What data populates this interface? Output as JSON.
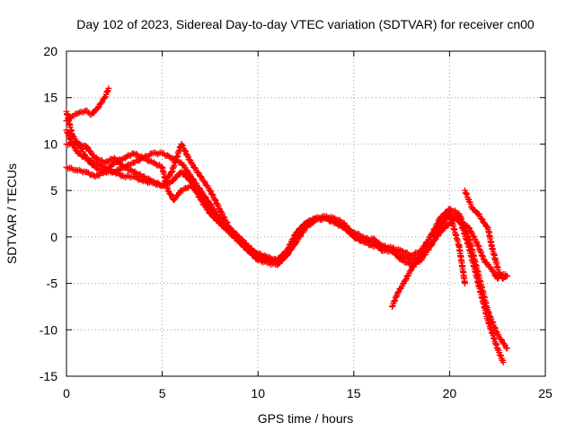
{
  "chart_data": {
    "type": "scatter",
    "title": "Day 102 of 2023, Sidereal Day-to-day VTEC variation (SDTVAR) for receiver cn00",
    "xlabel": "GPS time / hours",
    "ylabel": "SDTVAR / TECUs",
    "xlim": [
      0,
      25
    ],
    "ylim": [
      -15,
      20
    ],
    "xticks": [
      0,
      5,
      10,
      15,
      20,
      25
    ],
    "yticks": [
      -15,
      -10,
      -5,
      0,
      5,
      10,
      15,
      20
    ],
    "grid": true,
    "marker": "+",
    "series": [
      {
        "name": "track-a",
        "color": "#ff0000",
        "x": [
          0.0,
          0.3,
          0.6,
          1.0,
          1.3,
          1.6,
          2.0,
          2.2
        ],
        "y": [
          12.5,
          13.0,
          13.3,
          13.6,
          13.2,
          13.8,
          15.0,
          16.0
        ]
      },
      {
        "name": "track-b",
        "color": "#ff0000",
        "x": [
          0.0,
          0.3,
          0.6,
          0.8,
          1.0,
          1.5,
          2.0,
          2.5,
          3.0,
          3.5,
          4.0,
          4.5,
          5.0,
          5.5,
          6.0,
          6.5,
          7.0,
          7.5,
          8.0,
          8.5,
          9.0,
          9.5,
          10.0,
          10.5,
          11.0,
          11.5,
          12.0,
          12.5,
          13.0,
          13.5,
          14.0,
          14.5,
          15.0,
          15.5,
          16.0,
          16.5,
          17.0,
          17.5,
          18.0,
          18.5,
          19.0,
          19.5,
          20.0,
          20.5,
          21.0,
          21.5,
          22.0,
          22.5,
          23.0
        ],
        "y": [
          13.5,
          11.0,
          10.0,
          9.5,
          8.5,
          7.5,
          7.0,
          7.0,
          7.5,
          7.0,
          6.5,
          6.0,
          5.5,
          7.0,
          10.0,
          8.0,
          6.5,
          5.0,
          3.0,
          1.0,
          -0.5,
          -1.5,
          -2.5,
          -2.8,
          -3.0,
          -2.0,
          0.0,
          1.5,
          2.0,
          2.2,
          2.0,
          1.5,
          0.0,
          -0.5,
          -0.2,
          -1.0,
          -1.5,
          -2.0,
          -2.5,
          -2.0,
          0.0,
          2.0,
          3.0,
          2.5,
          0.0,
          -4.0,
          -8.0,
          -10.5,
          -12.0
        ]
      },
      {
        "name": "track-c",
        "color": "#ff0000",
        "x": [
          0.0,
          0.5,
          1.0,
          1.5,
          2.0,
          2.5,
          3.0,
          3.5,
          4.0,
          4.5,
          5.0,
          5.5,
          6.0,
          6.5,
          7.0,
          7.5,
          8.0,
          8.5,
          9.0,
          9.5,
          10.0,
          10.5,
          11.0,
          11.5,
          12.0,
          12.5,
          13.0,
          13.5,
          14.0,
          14.5,
          15.0,
          15.5,
          16.0,
          16.5,
          17.0,
          17.5,
          18.0,
          18.5,
          19.0,
          19.5,
          20.0,
          20.5,
          21.0,
          21.5,
          22.0,
          22.5,
          22.8
        ],
        "y": [
          10.0,
          10.0,
          9.8,
          8.5,
          8.0,
          8.5,
          7.5,
          8.0,
          8.5,
          9.0,
          9.0,
          8.5,
          8.0,
          6.5,
          5.0,
          3.5,
          2.0,
          1.0,
          0.0,
          -1.0,
          -2.0,
          -2.3,
          -2.5,
          -1.5,
          0.5,
          1.5,
          2.0,
          2.0,
          1.5,
          1.0,
          0.5,
          0.0,
          -0.5,
          -1.5,
          -1.5,
          -2.5,
          -3.0,
          -2.5,
          -1.0,
          1.0,
          2.5,
          2.0,
          -1.0,
          -5.0,
          -9.0,
          -12.0,
          -13.5
        ]
      },
      {
        "name": "track-d",
        "color": "#ff0000",
        "x": [
          0.0,
          0.5,
          1.0,
          1.5,
          2.0,
          2.5,
          3.0,
          3.5,
          4.0,
          4.5,
          5.0,
          5.3,
          5.6,
          6.0,
          6.5,
          7.0,
          7.5,
          8.0,
          8.5,
          9.0,
          9.5,
          10.0,
          10.5,
          11.0,
          11.5,
          12.0,
          12.5,
          13.0,
          13.5,
          14.0,
          14.5,
          15.0,
          15.5,
          16.0,
          16.5,
          17.0,
          17.5,
          18.0,
          18.5,
          19.0,
          19.5,
          20.0,
          20.5,
          20.8
        ],
        "y": [
          7.5,
          7.2,
          7.0,
          6.5,
          7.0,
          8.0,
          8.5,
          9.0,
          8.5,
          8.0,
          7.5,
          5.0,
          4.0,
          5.0,
          5.5,
          4.5,
          3.0,
          1.5,
          0.5,
          -0.5,
          -1.5,
          -2.0,
          -2.5,
          -2.7,
          -2.0,
          -0.5,
          1.0,
          1.8,
          2.0,
          1.8,
          1.0,
          0.0,
          -0.5,
          -1.0,
          -1.0,
          -1.2,
          -1.5,
          -2.0,
          -1.5,
          0.0,
          1.5,
          2.5,
          -1.0,
          -5.0
        ]
      },
      {
        "name": "track-e",
        "color": "#ff0000",
        "x": [
          0.0,
          0.3,
          0.6,
          1.0,
          1.5,
          2.0,
          2.5,
          3.0,
          3.5,
          4.0,
          4.5,
          5.0,
          5.5,
          6.0,
          6.5,
          7.0,
          7.5,
          8.0,
          8.5,
          9.0,
          9.5,
          10.0,
          10.5,
          11.0,
          11.5,
          12.0
        ],
        "y": [
          11.5,
          10.0,
          9.0,
          8.5,
          8.0,
          7.5,
          7.0,
          6.5,
          6.5,
          6.0,
          5.8,
          5.5,
          6.0,
          7.0,
          6.0,
          4.0,
          2.5,
          1.5,
          0.5,
          -0.5,
          -1.5,
          -1.8,
          -2.2,
          -2.5,
          -1.8,
          -0.5
        ]
      },
      {
        "name": "track-f",
        "color": "#ff0000",
        "x": [
          17.0,
          17.3,
          17.6,
          18.0,
          18.5,
          19.0,
          19.5,
          20.0,
          20.3,
          20.6,
          21.0,
          21.4,
          21.8,
          22.2,
          22.5,
          22.8,
          23.0
        ],
        "y": [
          -7.5,
          -6.0,
          -5.0,
          -3.5,
          -2.0,
          -1.0,
          0.5,
          1.5,
          2.0,
          1.5,
          1.0,
          -0.5,
          -2.5,
          -3.5,
          -4.5,
          -4.0,
          -4.2
        ]
      },
      {
        "name": "track-g",
        "color": "#ff0000",
        "x": [
          20.8,
          21.0,
          21.2,
          21.5,
          21.8,
          22.0,
          22.2,
          22.4,
          22.6,
          22.8,
          23.0
        ],
        "y": [
          5.0,
          4.0,
          3.0,
          2.5,
          1.5,
          1.0,
          -1.0,
          -2.5,
          -4.0,
          -4.5,
          -4.2
        ]
      }
    ]
  }
}
